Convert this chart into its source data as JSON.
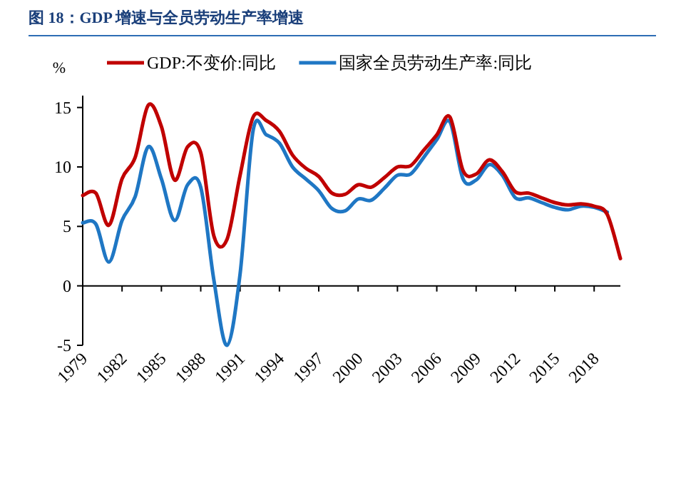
{
  "chart_data": {
    "type": "line",
    "title": "图 18：GDP 增速与全员劳动生产率增速",
    "ylabel": "%",
    "legend": "top",
    "x": [
      1979,
      1980,
      1981,
      1982,
      1983,
      1984,
      1985,
      1986,
      1987,
      1988,
      1989,
      1990,
      1991,
      1992,
      1993,
      1994,
      1995,
      1996,
      1997,
      1998,
      1999,
      2000,
      2001,
      2002,
      2003,
      2004,
      2005,
      2006,
      2007,
      2008,
      2009,
      2010,
      2011,
      2012,
      2013,
      2014,
      2015,
      2016,
      2017,
      2018,
      2019,
      2020
    ],
    "series": [
      {
        "name": "GDP:不变价:同比",
        "color": "#c00000",
        "values": [
          7.6,
          7.8,
          5.1,
          9.0,
          10.8,
          15.2,
          13.4,
          8.9,
          11.7,
          11.2,
          4.2,
          3.9,
          9.3,
          14.2,
          13.9,
          13.0,
          11.0,
          9.9,
          9.2,
          7.8,
          7.7,
          8.5,
          8.3,
          9.1,
          10.0,
          10.1,
          11.4,
          12.7,
          14.2,
          9.7,
          9.4,
          10.6,
          9.6,
          7.9,
          7.8,
          7.4,
          7.0,
          6.8,
          6.9,
          6.7,
          6.0,
          2.3
        ]
      },
      {
        "name": "国家全员劳动生产率:同比",
        "color": "#1f77c4",
        "values": [
          5.3,
          5.2,
          2.0,
          5.5,
          7.5,
          11.7,
          9.0,
          5.5,
          8.5,
          8.3,
          0.5,
          -5.0,
          1.0,
          13.1,
          12.7,
          12.0,
          10.0,
          9.0,
          8.0,
          6.5,
          6.3,
          7.3,
          7.2,
          8.2,
          9.3,
          9.4,
          10.8,
          12.3,
          13.8,
          9.0,
          8.9,
          10.2,
          9.3,
          7.4,
          7.4,
          7.0,
          6.6,
          6.4,
          6.7,
          6.6,
          6.2,
          null
        ]
      }
    ],
    "xlim": [
      1979,
      2020
    ],
    "xticks": [
      1979,
      1982,
      1985,
      1988,
      1991,
      1994,
      1997,
      2000,
      2003,
      2006,
      2009,
      2012,
      2015,
      2018
    ],
    "ylim": [
      -5,
      16
    ],
    "yticks": [
      -5,
      0,
      5,
      10,
      15
    ]
  }
}
